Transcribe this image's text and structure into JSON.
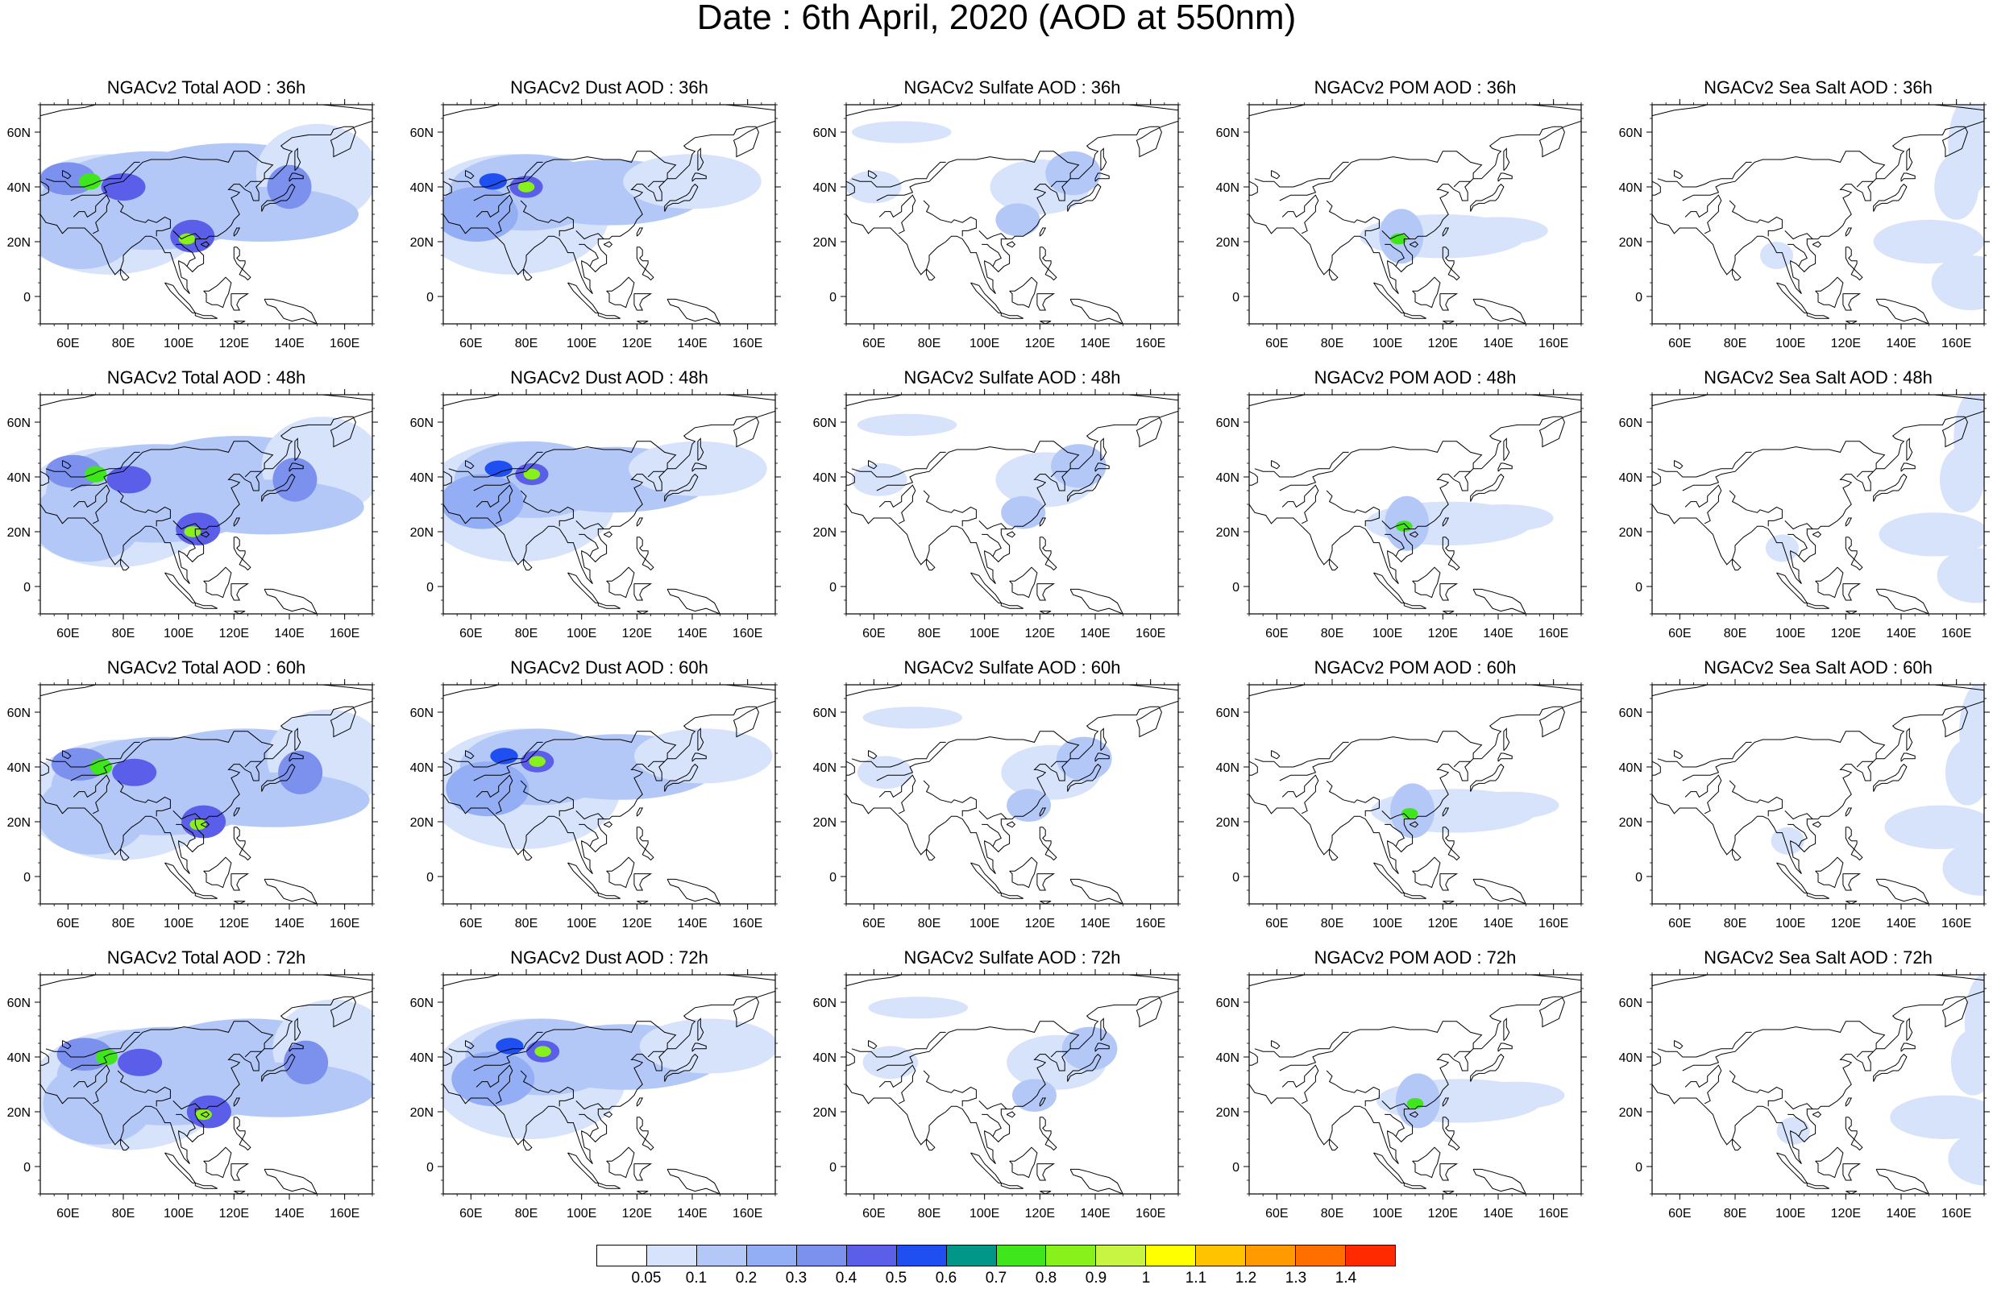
{
  "title": "Date : 6th April, 2020 (AOD at 550nm)",
  "panels": [
    [
      "NGACv2 Total AOD : 36h",
      "NGACv2 Dust AOD : 36h",
      "NGACv2 Sulfate AOD : 36h",
      "NGACv2 POM AOD : 36h",
      "NGACv2 Sea Salt AOD : 36h"
    ],
    [
      "NGACv2 Total AOD : 48h",
      "NGACv2 Dust AOD : 48h",
      "NGACv2 Sulfate AOD : 48h",
      "NGACv2 POM AOD : 48h",
      "NGACv2 Sea Salt AOD : 48h"
    ],
    [
      "NGACv2 Total AOD : 60h",
      "NGACv2 Dust AOD : 60h",
      "NGACv2 Sulfate AOD : 60h",
      "NGACv2 POM AOD : 60h",
      "NGACv2 Sea Salt AOD : 60h"
    ],
    [
      "NGACv2 Total AOD : 72h",
      "NGACv2 Dust AOD : 72h",
      "NGACv2 Sulfate AOD : 72h",
      "NGACv2 POM AOD : 72h",
      "NGACv2 Sea Salt  AOD : 72h"
    ]
  ],
  "lon_ticks": [
    "60E",
    "80E",
    "100E",
    "120E",
    "140E",
    "160E"
  ],
  "lat_ticks": [
    "60N",
    "40N",
    "20N",
    "0"
  ],
  "colorbar": {
    "labels": [
      "0.05",
      "0.1",
      "0.2",
      "0.3",
      "0.4",
      "0.5",
      "0.6",
      "0.7",
      "0.8",
      "0.9",
      "1",
      "1.1",
      "1.2",
      "1.3",
      "1.4"
    ],
    "colors": [
      "#ffffff",
      "#d7e3fb",
      "#b4c8f8",
      "#94aef5",
      "#7c90ee",
      "#5b5ee8",
      "#1f4ff0",
      "#009688",
      "#3ee61b",
      "#88f01a",
      "#c8f542",
      "#ffff00",
      "#ffc300",
      "#ff9a00",
      "#ff6f00",
      "#ff2a00"
    ]
  },
  "map_extent": {
    "lon": [
      50,
      170
    ],
    "lat": [
      -10,
      70
    ]
  }
}
